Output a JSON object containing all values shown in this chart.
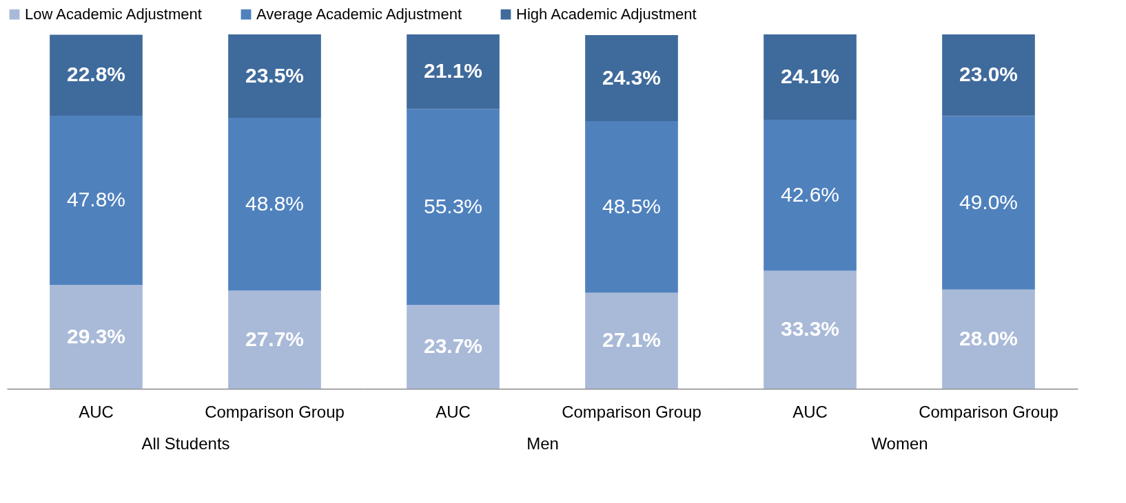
{
  "chart_data": [
    {
      "type": "bar",
      "stacked": true,
      "legend": "top",
      "categories": [
        "AUC",
        "Comparison Group"
      ],
      "xlabel": "All Students",
      "series": [
        {
          "name": "Low Academic Adjustment",
          "color": "#a9b9d8",
          "values": [
            29.3,
            27.7
          ],
          "value_labels": [
            "29.3%",
            "27.7%"
          ]
        },
        {
          "name": "Average Academic Adjustment",
          "color": "#4f81bd",
          "values": [
            47.8,
            48.8
          ],
          "value_labels": [
            "47.8%",
            "48.8%"
          ]
        },
        {
          "name": "High Academic Adjustment",
          "color": "#3f6a9c",
          "values": [
            22.8,
            23.5
          ],
          "value_labels": [
            "22.8%",
            "23.5%"
          ]
        }
      ]
    },
    {
      "type": "bar",
      "stacked": true,
      "categories": [
        "AUC",
        "Comparison Group"
      ],
      "xlabel": "Men",
      "series": [
        {
          "color": "#a9b9d8",
          "values": [
            23.7,
            27.1
          ],
          "value_labels": [
            "23.7%",
            "27.1%"
          ]
        },
        {
          "color": "#4f81bd",
          "values": [
            55.3,
            48.5
          ],
          "value_labels": [
            "55.3%",
            "48.5%"
          ]
        },
        {
          "color": "#3f6a9c",
          "values": [
            21.1,
            24.3
          ],
          "value_labels": [
            "21.1%",
            "24.3%"
          ]
        }
      ]
    },
    {
      "type": "bar",
      "stacked": true,
      "categories": [
        "AUC",
        "Comparison Group"
      ],
      "xlabel": "Women",
      "series": [
        {
          "color": "#a9b9d8",
          "values": [
            33.3,
            28.0
          ],
          "value_labels": [
            "33.3%",
            "28.0%"
          ]
        },
        {
          "color": "#4f81bd",
          "values": [
            42.6,
            49.0
          ],
          "value_labels": [
            "42.6%",
            "49.0%"
          ]
        },
        {
          "color": "#3f6a9c",
          "values": [
            24.1,
            23.0
          ],
          "value_labels": [
            "24.1%",
            "23.0%"
          ]
        }
      ]
    }
  ]
}
